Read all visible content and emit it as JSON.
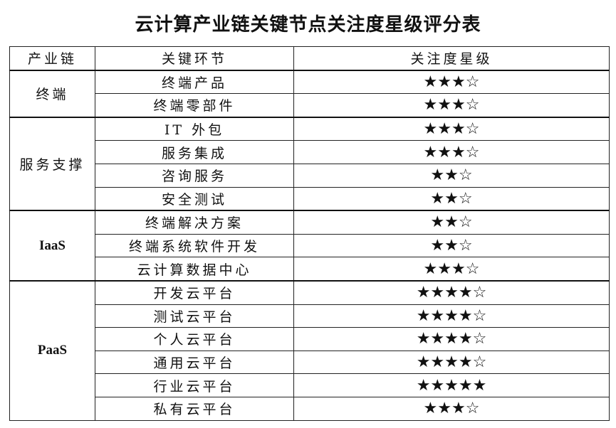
{
  "title": "云计算产业链关键节点关注度星级评分表",
  "headers": [
    "产业链",
    "关键环节",
    "关注度星级"
  ],
  "groups": [
    {
      "chain": "终端",
      "rows": [
        {
          "node": "终端产品",
          "rating": 3,
          "stars": "★★★☆"
        },
        {
          "node": "终端零部件",
          "rating": 3,
          "stars": "★★★☆"
        }
      ]
    },
    {
      "chain": "服务支撑",
      "rows": [
        {
          "node": "IT 外包",
          "rating": 3,
          "stars": "★★★☆"
        },
        {
          "node": "服务集成",
          "rating": 3,
          "stars": "★★★☆"
        },
        {
          "node": "咨询服务",
          "rating": 2,
          "stars": "★★☆"
        },
        {
          "node": "安全测试",
          "rating": 2,
          "stars": "★★☆"
        }
      ]
    },
    {
      "chain": "IaaS",
      "rows": [
        {
          "node": "终端解决方案",
          "rating": 2,
          "stars": "★★☆"
        },
        {
          "node": "终端系统软件开发",
          "rating": 2,
          "stars": "★★☆"
        },
        {
          "node": "云计算数据中心",
          "rating": 3,
          "stars": "★★★☆"
        }
      ]
    },
    {
      "chain": "PaaS",
      "rows": [
        {
          "node": "开发云平台",
          "rating": 4,
          "stars": "★★★★☆"
        },
        {
          "node": "测试云平台",
          "rating": 4,
          "stars": "★★★★☆"
        },
        {
          "node": "个人云平台",
          "rating": 4,
          "stars": "★★★★☆"
        },
        {
          "node": "通用云平台",
          "rating": 4,
          "stars": "★★★★☆"
        },
        {
          "node": "行业云平台",
          "rating": 5,
          "stars": "★★★★★"
        },
        {
          "node": "私有云平台",
          "rating": 3,
          "stars": "★★★☆"
        }
      ]
    }
  ]
}
